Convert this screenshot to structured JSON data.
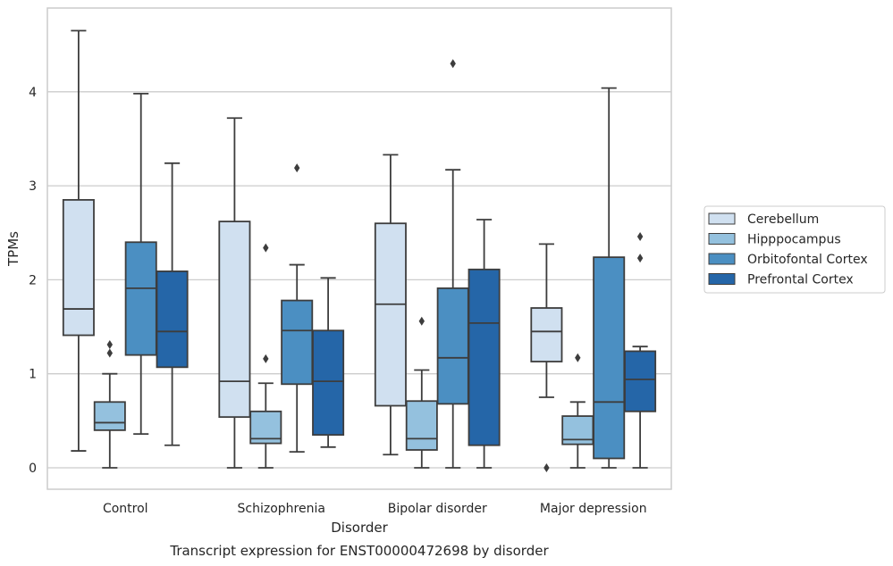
{
  "chart_data": {
    "type": "box",
    "title": "",
    "caption": "Transcript expression for ENST00000472698 by disorder",
    "xlabel": "Disorder",
    "ylabel": "TPMs",
    "ylim": [
      -0.22,
      4.9
    ],
    "yticks": [
      0,
      1,
      2,
      3,
      4
    ],
    "grid": "horizontal",
    "legend_placement": "right",
    "categories": [
      "Control",
      "Schizophrenia",
      "Bipolar disorder",
      "Major depression"
    ],
    "series": [
      {
        "name": "Cerebellum",
        "color": "#d0e0f0",
        "boxes": [
          {
            "whisker_low": 0.18,
            "q1": 1.41,
            "median": 1.69,
            "q3": 2.85,
            "whisker_high": 4.65,
            "outliers": []
          },
          {
            "whisker_low": 0.0,
            "q1": 0.54,
            "median": 0.92,
            "q3": 2.62,
            "whisker_high": 3.72,
            "outliers": []
          },
          {
            "whisker_low": 0.14,
            "q1": 0.66,
            "median": 1.74,
            "q3": 2.6,
            "whisker_high": 3.33,
            "outliers": []
          },
          {
            "whisker_low": 0.75,
            "q1": 1.13,
            "median": 1.45,
            "q3": 1.7,
            "whisker_high": 2.38,
            "outliers": [
              0.0
            ]
          }
        ]
      },
      {
        "name": "Hipppocampus",
        "color": "#94c1de",
        "boxes": [
          {
            "whisker_low": 0.0,
            "q1": 0.4,
            "median": 0.48,
            "q3": 0.7,
            "whisker_high": 1.0,
            "outliers": [
              1.22,
              1.31
            ]
          },
          {
            "whisker_low": 0.0,
            "q1": 0.26,
            "median": 0.31,
            "q3": 0.6,
            "whisker_high": 0.9,
            "outliers": [
              1.16,
              2.34
            ]
          },
          {
            "whisker_low": 0.0,
            "q1": 0.19,
            "median": 0.31,
            "q3": 0.71,
            "whisker_high": 1.04,
            "outliers": [
              1.56
            ]
          },
          {
            "whisker_low": 0.0,
            "q1": 0.25,
            "median": 0.3,
            "q3": 0.55,
            "whisker_high": 0.7,
            "outliers": [
              1.17
            ]
          }
        ]
      },
      {
        "name": "Orbitofontal Cortex",
        "color": "#4b8fc2",
        "boxes": [
          {
            "whisker_low": 0.36,
            "q1": 1.2,
            "median": 1.91,
            "q3": 2.4,
            "whisker_high": 3.98,
            "outliers": []
          },
          {
            "whisker_low": 0.17,
            "q1": 0.89,
            "median": 1.46,
            "q3": 1.78,
            "whisker_high": 2.16,
            "outliers": [
              3.19
            ]
          },
          {
            "whisker_low": 0.0,
            "q1": 0.68,
            "median": 1.17,
            "q3": 1.91,
            "whisker_high": 3.17,
            "outliers": [
              4.3
            ]
          },
          {
            "whisker_low": 0.0,
            "q1": 0.1,
            "median": 0.7,
            "q3": 2.24,
            "whisker_high": 4.04,
            "outliers": []
          }
        ]
      },
      {
        "name": "Prefrontal Cortex",
        "color": "#2566a8",
        "boxes": [
          {
            "whisker_low": 0.24,
            "q1": 1.07,
            "median": 1.45,
            "q3": 2.09,
            "whisker_high": 3.24,
            "outliers": []
          },
          {
            "whisker_low": 0.22,
            "q1": 0.35,
            "median": 0.92,
            "q3": 1.46,
            "whisker_high": 2.02,
            "outliers": []
          },
          {
            "whisker_low": 0.0,
            "q1": 0.24,
            "median": 1.54,
            "q3": 2.11,
            "whisker_high": 2.64,
            "outliers": []
          },
          {
            "whisker_low": 0.0,
            "q1": 0.6,
            "median": 0.94,
            "q3": 1.24,
            "whisker_high": 1.29,
            "outliers": [
              2.23,
              2.46
            ]
          }
        ]
      }
    ]
  }
}
